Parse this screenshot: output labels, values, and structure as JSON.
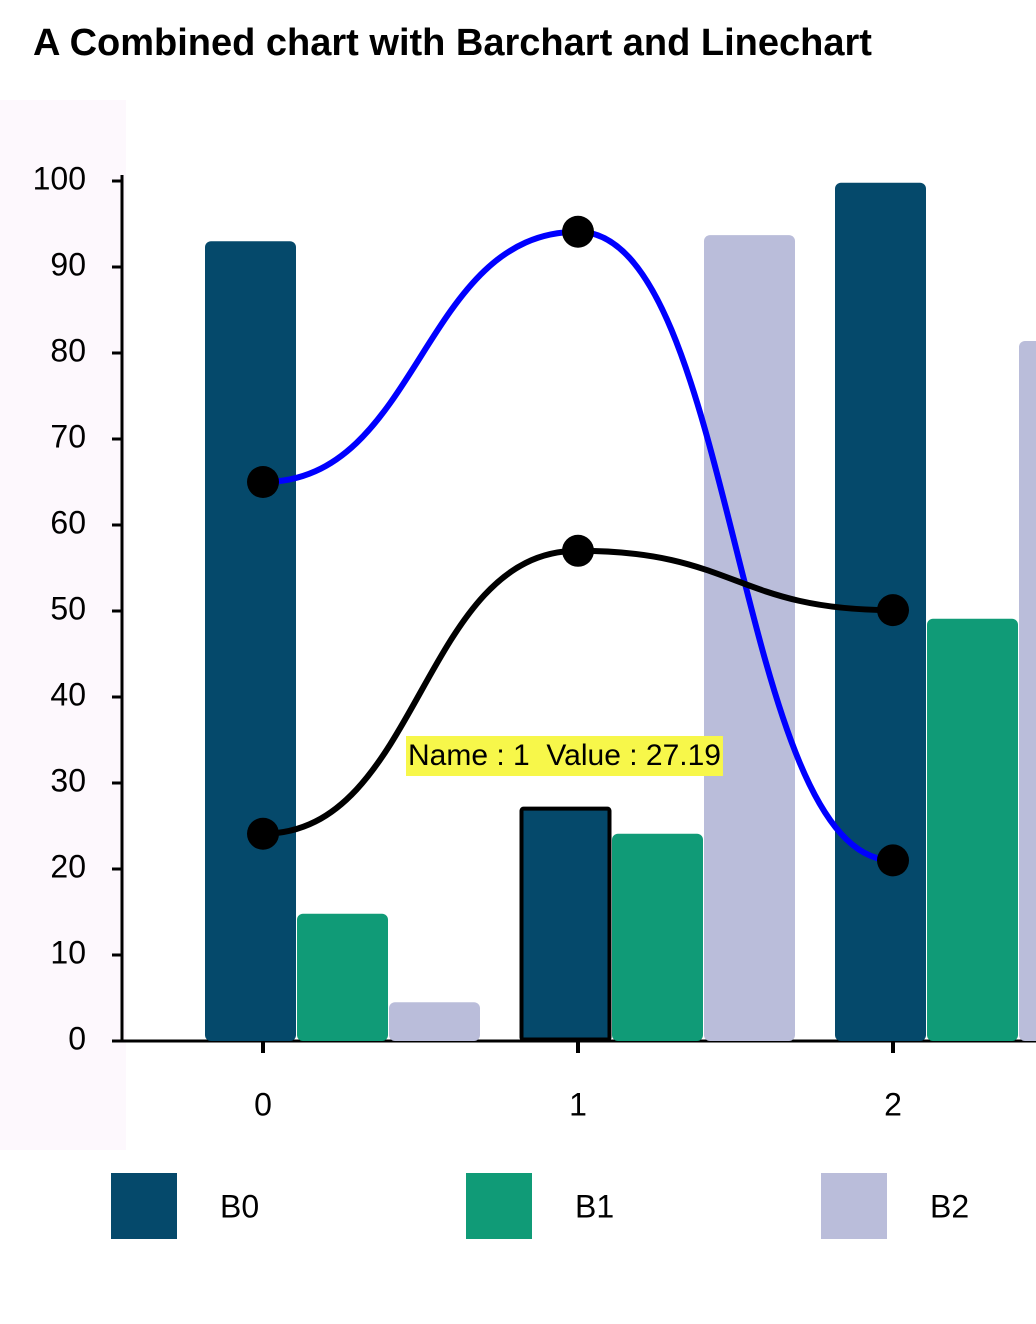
{
  "chart_data": {
    "type": "bar-line",
    "title": "A Combined chart with Barchart and Linechart",
    "categories": [
      "0",
      "1",
      "2"
    ],
    "series": [
      {
        "name": "B0",
        "color": "#05496b",
        "values": [
          93,
          27.19,
          99.8
        ]
      },
      {
        "name": "B1",
        "color": "#109b77",
        "values": [
          14.8,
          24.1,
          49.1
        ]
      },
      {
        "name": "B2",
        "color": "#babdda",
        "values": [
          4.5,
          93.7,
          81.4
        ]
      }
    ],
    "lines": [
      {
        "color": "#0000ff",
        "values": [
          65,
          94.1,
          21
        ]
      },
      {
        "color": "#000000",
        "values": [
          24.1,
          57,
          50.1
        ]
      }
    ],
    "selected": {
      "series": 0,
      "index": 1
    },
    "tooltip": "Name : 1  Value : 27.19",
    "ylim": [
      0,
      100
    ],
    "yticks": [
      0,
      10,
      20,
      30,
      40,
      50,
      60,
      70,
      80,
      90,
      100
    ]
  }
}
